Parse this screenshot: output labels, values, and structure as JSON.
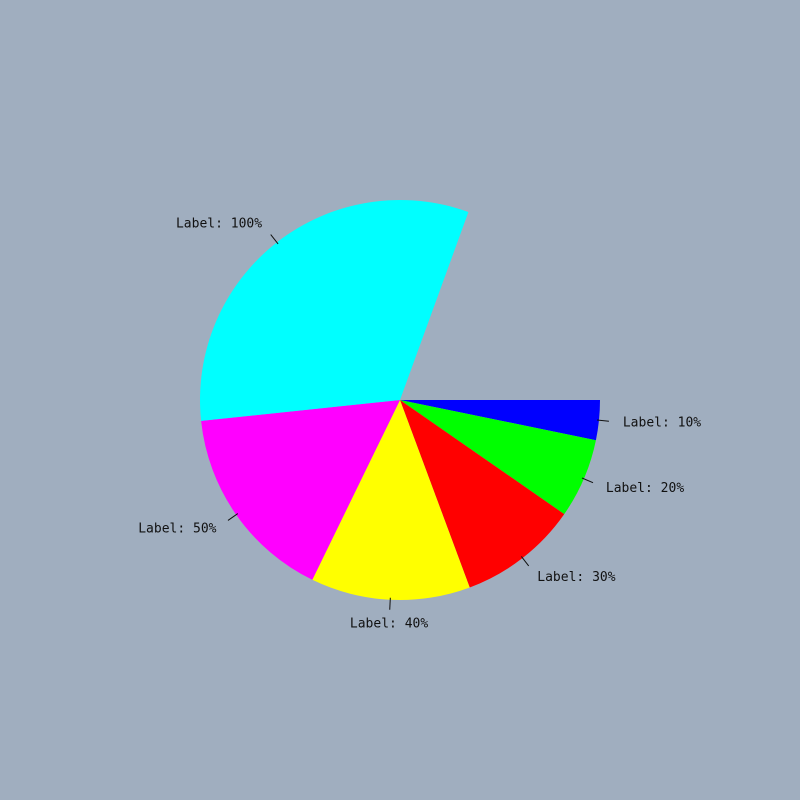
{
  "chart_data": {
    "type": "pie",
    "title": "",
    "start_angle_deg": 0,
    "direction": "clockwise",
    "total_degrees": 290,
    "slices": [
      {
        "label": "Label: 10%",
        "value": 10,
        "color": "#0000ff"
      },
      {
        "label": "Label: 20%",
        "value": 20,
        "color": "#00ff00"
      },
      {
        "label": "Label: 30%",
        "value": 30,
        "color": "#ff0000"
      },
      {
        "label": "Label: 40%",
        "value": 40,
        "color": "#ffff00"
      },
      {
        "label": "Label: 50%",
        "value": 50,
        "color": "#ff00ff"
      },
      {
        "label": "Label: 100%",
        "value": 100,
        "color": "#00ffff"
      }
    ]
  }
}
